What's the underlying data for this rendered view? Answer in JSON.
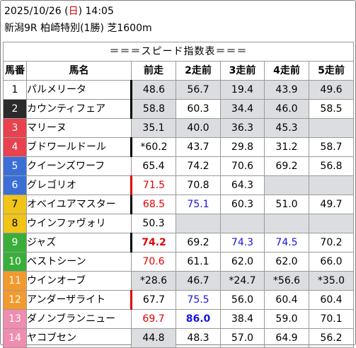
{
  "header": {
    "date_prefix": "2025/10/26 (",
    "weekday": "日",
    "time_suffix": ") 14:05",
    "race": "新潟9R 柏崎特別(1勝) 芝1600m"
  },
  "table": {
    "title": "＝＝＝スピード指数表＝＝＝",
    "columns": [
      "馬番",
      "馬名",
      "前走",
      "2走前",
      "3走前",
      "4走前",
      "5走前"
    ],
    "rows": [
      {
        "no": "1",
        "name": "パルメリータ",
        "bg": "#ffffff",
        "fg": "#000000",
        "mark": "black",
        "values": [
          {
            "v": "48.6",
            "gray": true
          },
          {
            "v": "56.7",
            "gray": true
          },
          {
            "v": "19.4",
            "gray": true
          },
          {
            "v": "43.9",
            "gray": true
          },
          {
            "v": "49.6",
            "gray": true
          }
        ]
      },
      {
        "no": "2",
        "name": "カウンティフェア",
        "bg": "#2b2b2b",
        "fg": "#ffffff",
        "mark": "black",
        "values": [
          {
            "v": "58.8",
            "gray": true
          },
          {
            "v": "60.3",
            "gray": false
          },
          {
            "v": "34.4",
            "gray": true
          },
          {
            "v": "46.0",
            "gray": true
          },
          {
            "v": "58.5",
            "gray": false
          }
        ]
      },
      {
        "no": "3",
        "name": "マリーヌ",
        "bg": "#e8414f",
        "fg": "#ffffff",
        "mark": "none",
        "values": [
          {
            "v": "35.1",
            "gray": true
          },
          {
            "v": "40.0",
            "gray": true
          },
          {
            "v": "36.3",
            "gray": true
          },
          {
            "v": "45.3",
            "gray": true
          },
          {
            "v": "",
            "gray": true
          }
        ]
      },
      {
        "no": "4",
        "name": "ブドワールドール",
        "bg": "#e8414f",
        "fg": "#ffffff",
        "mark": "black",
        "values": [
          {
            "v": "*60.2",
            "gray": false
          },
          {
            "v": "43.7",
            "gray": false
          },
          {
            "v": "29.8",
            "gray": false
          },
          {
            "v": "31.2",
            "gray": false
          },
          {
            "v": "58.7",
            "gray": false
          }
        ]
      },
      {
        "no": "5",
        "name": "クイーンズワーフ",
        "bg": "#3b6fd6",
        "fg": "#ffffff",
        "mark": "none",
        "values": [
          {
            "v": "65.4",
            "gray": false
          },
          {
            "v": "74.2",
            "gray": false
          },
          {
            "v": "70.6",
            "gray": false
          },
          {
            "v": "69.2",
            "gray": false
          },
          {
            "v": "56.8",
            "gray": false
          }
        ]
      },
      {
        "no": "6",
        "name": "グレゴリオ",
        "bg": "#3b6fd6",
        "fg": "#ffffff",
        "mark": "red",
        "values": [
          {
            "v": "71.5",
            "gray": false,
            "color": "red"
          },
          {
            "v": "70.8",
            "gray": false
          },
          {
            "v": "64.3",
            "gray": false
          },
          {
            "v": "",
            "gray": true
          },
          {
            "v": "",
            "gray": true
          }
        ]
      },
      {
        "no": "7",
        "name": "オベイユアマスター",
        "bg": "#f0c419",
        "fg": "#000000",
        "mark": "black",
        "values": [
          {
            "v": "68.5",
            "gray": false,
            "color": "red"
          },
          {
            "v": "75.1",
            "gray": false,
            "color": "blue"
          },
          {
            "v": "60.3",
            "gray": false
          },
          {
            "v": "51.0",
            "gray": false
          },
          {
            "v": "49.7",
            "gray": false
          }
        ]
      },
      {
        "no": "8",
        "name": "ウインファヴォリ",
        "bg": "#f0c419",
        "fg": "#000000",
        "mark": "none",
        "values": [
          {
            "v": "50.3",
            "gray": false
          },
          {
            "v": "",
            "gray": true
          },
          {
            "v": "",
            "gray": true
          },
          {
            "v": "",
            "gray": true
          },
          {
            "v": "",
            "gray": true
          }
        ]
      },
      {
        "no": "9",
        "name": "ジャズ",
        "bg": "#3aae3a",
        "fg": "#ffffff",
        "mark": "black",
        "values": [
          {
            "v": "74.2",
            "gray": false,
            "color": "red",
            "bold": true
          },
          {
            "v": "69.2",
            "gray": false
          },
          {
            "v": "74.3",
            "gray": false,
            "color": "blue"
          },
          {
            "v": "74.5",
            "gray": false,
            "color": "blue"
          },
          {
            "v": "70.2",
            "gray": false
          }
        ]
      },
      {
        "no": "10",
        "name": "ベストシーン",
        "bg": "#3aae3a",
        "fg": "#ffffff",
        "mark": "none",
        "values": [
          {
            "v": "70.6",
            "gray": false,
            "color": "red"
          },
          {
            "v": "61.1",
            "gray": false
          },
          {
            "v": "62.0",
            "gray": false
          },
          {
            "v": "62.0",
            "gray": false
          },
          {
            "v": "66.0",
            "gray": false
          }
        ]
      },
      {
        "no": "11",
        "name": "ウインオーブ",
        "bg": "#f29a2e",
        "fg": "#ffffff",
        "mark": "none",
        "values": [
          {
            "v": "*28.6",
            "gray": true
          },
          {
            "v": "46.7",
            "gray": true
          },
          {
            "v": "*24.7",
            "gray": true
          },
          {
            "v": "*56.6",
            "gray": true
          },
          {
            "v": "*35.0",
            "gray": true
          }
        ]
      },
      {
        "no": "12",
        "name": "アンダーザライト",
        "bg": "#f29a2e",
        "fg": "#ffffff",
        "mark": "red",
        "values": [
          {
            "v": "67.7",
            "gray": false
          },
          {
            "v": "75.5",
            "gray": false,
            "color": "blue"
          },
          {
            "v": "56.0",
            "gray": false
          },
          {
            "v": "60.4",
            "gray": false
          },
          {
            "v": "60.4",
            "gray": false
          }
        ]
      },
      {
        "no": "13",
        "name": "ダノンブランニュー",
        "bg": "#f08cb0",
        "fg": "#ffffff",
        "mark": "none",
        "values": [
          {
            "v": "69.7",
            "gray": false,
            "color": "red"
          },
          {
            "v": "86.0",
            "gray": false,
            "color": "blue",
            "bold": true
          },
          {
            "v": "38.4",
            "gray": false
          },
          {
            "v": "59.0",
            "gray": false
          },
          {
            "v": "70.1",
            "gray": false
          }
        ]
      },
      {
        "no": "14",
        "name": "ヤコブセン",
        "bg": "#f08cb0",
        "fg": "#ffffff",
        "mark": "none",
        "values": [
          {
            "v": "44.8",
            "gray": true
          },
          {
            "v": "48.3",
            "gray": false
          },
          {
            "v": "57.0",
            "gray": false
          },
          {
            "v": "64.9",
            "gray": false
          },
          {
            "v": "56.2",
            "gray": false
          }
        ]
      }
    ]
  }
}
